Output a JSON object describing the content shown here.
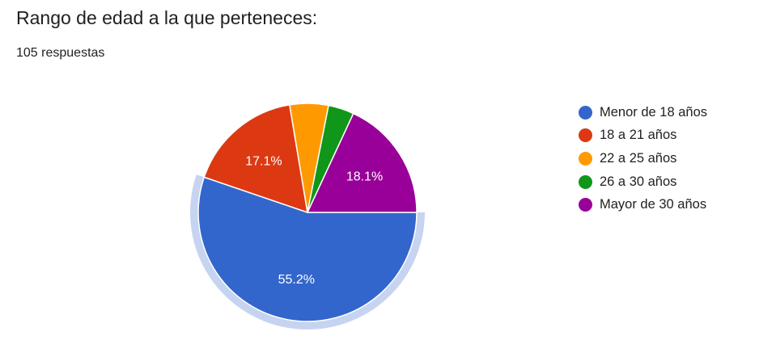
{
  "header": {
    "title": "Rango de edad a la que perteneces:",
    "response_count": "105 respuestas"
  },
  "chart_data": {
    "type": "pie",
    "title": "Rango de edad a la que perteneces:",
    "total": 105,
    "slices": [
      {
        "label": "Menor de 18 años",
        "value": 58,
        "percent": 55.2,
        "color": "#3366cc",
        "label_text": "55.2%",
        "highlighted": true
      },
      {
        "label": "18 a 21 años",
        "value": 18,
        "percent": 17.1,
        "color": "#dc3912",
        "label_text": "17.1%"
      },
      {
        "label": "22 a 25 años",
        "value": 6,
        "percent": 5.7,
        "color": "#ff9900",
        "label_text": ""
      },
      {
        "label": "26 a 30 años",
        "value": 4,
        "percent": 3.8,
        "color": "#109618",
        "label_text": ""
      },
      {
        "label": "Mayor de 30 años",
        "value": 19,
        "percent": 18.1,
        "color": "#990099",
        "label_text": "18.1%"
      }
    ],
    "legend_position": "right"
  }
}
